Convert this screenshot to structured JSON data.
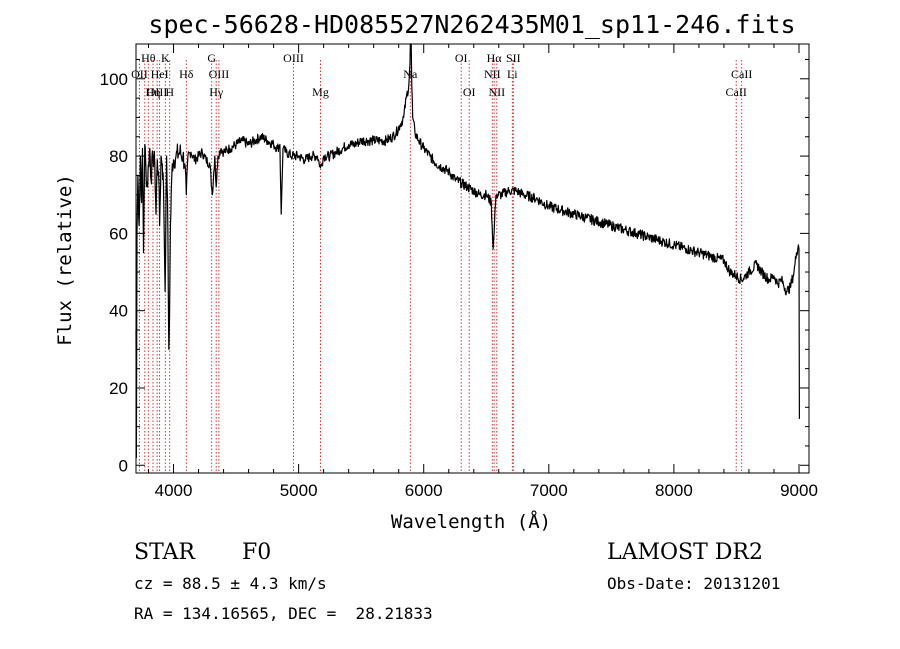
{
  "chart_data": {
    "type": "line",
    "title": "spec-56628-HD085527N262435M01_sp11-246.fits",
    "xlabel": "Wavelength (Å)",
    "ylabel": "Flux (relative)",
    "xlim": [
      3700,
      9080
    ],
    "ylim": [
      -2,
      109
    ],
    "xticks": [
      4000,
      5000,
      6000,
      7000,
      8000,
      9000
    ],
    "yticks": [
      0,
      20,
      40,
      60,
      80,
      100
    ],
    "grid": false,
    "series": [
      {
        "x": [
          3700,
          3703,
          3708,
          3715,
          3725,
          3735,
          3745,
          3752,
          3760,
          3770,
          3780,
          3790,
          3800,
          3810,
          3820,
          3835,
          3850,
          3860,
          3870,
          3880,
          3889,
          3900,
          3910,
          3920,
          3933,
          3945,
          3955,
          3962,
          3968,
          3975,
          3990,
          4000,
          4020,
          4050,
          4075,
          4090,
          4102,
          4115,
          4140,
          4170,
          4200,
          4230,
          4260,
          4290,
          4310,
          4330,
          4341,
          4355,
          4380,
          4400,
          4450,
          4500,
          4550,
          4600,
          4650,
          4700,
          4750,
          4800,
          4830,
          4850,
          4861,
          4875,
          4900,
          4950,
          5000,
          5050,
          5100,
          5150,
          5175,
          5200,
          5250,
          5300,
          5350,
          5400,
          5450,
          5500,
          5550,
          5600,
          5650,
          5700,
          5750,
          5780,
          5810,
          5840,
          5860,
          5880,
          5890,
          5893,
          5896,
          5900,
          5905,
          5912,
          5930,
          5960,
          6000,
          6050,
          6100,
          6150,
          6200,
          6250,
          6300,
          6350,
          6400,
          6450,
          6500,
          6540,
          6555,
          6563,
          6570,
          6580,
          6620,
          6680,
          6740,
          6800,
          6900,
          7000,
          7100,
          7200,
          7300,
          7400,
          7500,
          7600,
          7700,
          7800,
          7900,
          8000,
          8100,
          8200,
          8300,
          8400,
          8450,
          8498,
          8540,
          8600,
          8662,
          8700,
          8760,
          8800,
          8830,
          8860,
          8900,
          8930,
          8960,
          8980,
          8995,
          9000,
          9003
        ],
        "y": [
          35,
          2,
          60,
          75,
          62,
          80,
          68,
          82,
          55,
          83,
          76,
          72,
          78,
          82,
          74,
          80,
          78,
          65,
          79,
          76,
          62,
          80,
          78,
          72,
          45,
          80,
          60,
          30,
          38,
          62,
          78,
          79,
          80,
          81,
          80,
          78,
          70,
          80,
          81,
          79,
          80,
          81,
          79,
          78,
          70,
          80,
          72,
          80,
          82,
          81,
          82,
          83,
          84,
          83,
          84,
          85,
          84,
          83,
          82,
          83,
          65,
          82,
          81,
          80,
          80,
          79,
          80,
          80,
          77,
          80,
          80,
          81,
          82,
          83,
          83,
          84,
          84,
          84,
          84,
          84,
          85,
          86,
          88,
          90,
          95,
          98,
          104,
          116,
          110,
          120,
          98,
          90,
          86,
          84,
          82,
          80,
          78,
          77,
          76,
          74,
          73,
          72,
          71,
          70,
          70,
          68,
          56,
          60,
          66,
          70,
          70,
          71,
          71,
          70,
          69,
          67,
          66,
          65,
          64,
          63,
          62,
          61,
          60,
          59,
          58,
          57,
          56,
          55,
          54,
          53,
          50,
          49,
          48,
          50,
          52,
          50,
          48,
          49,
          47,
          48,
          45,
          46,
          50,
          55,
          57,
          56,
          12
        ]
      }
    ],
    "emission_lines": [
      {
        "label": "Hθ",
        "w": 3798,
        "row": 0
      },
      {
        "label": "OII",
        "w": 3727,
        "row": 1
      },
      {
        "label": "OIII",
        "w": 3869,
        "row": 2
      },
      {
        "label": "HeI",
        "w": 3889,
        "row": 1
      },
      {
        "label": "Hη",
        "w": 3836,
        "row": 2
      },
      {
        "label": "K",
        "w": 3934,
        "row": 0
      },
      {
        "label": "H",
        "w": 3969,
        "row": 2
      },
      {
        "label": "Hδ",
        "w": 4102,
        "row": 1
      },
      {
        "label": "G",
        "w": 4305,
        "row": 0
      },
      {
        "label": "OIII",
        "w": 4363,
        "row": 1
      },
      {
        "label": "Hγ",
        "w": 4341,
        "row": 2
      },
      {
        "label": "OIII",
        "w": 4959,
        "row": 0
      },
      {
        "label": "Mg",
        "w": 5175,
        "row": 2
      },
      {
        "label": "Na",
        "w": 5893,
        "row": 1
      },
      {
        "label": "OI",
        "w": 6300,
        "row": 0
      },
      {
        "label": "OI",
        "w": 6364,
        "row": 2
      },
      {
        "label": "Hα",
        "w": 6563,
        "row": 0
      },
      {
        "label": "NII",
        "w": 6548,
        "row": 1
      },
      {
        "label": "NII",
        "w": 6584,
        "row": 2
      },
      {
        "label": "SII",
        "w": 6716,
        "row": 0
      },
      {
        "label": "Li",
        "w": 6708,
        "row": 1
      },
      {
        "label": "CaII",
        "w": 8542,
        "row": 1
      },
      {
        "label": "CaII",
        "w": 8498,
        "row": 2
      }
    ],
    "line_marker_positions": [
      3727,
      3770,
      3798,
      3836,
      3869,
      3889,
      3934,
      3969,
      4102,
      4305,
      4341,
      4363,
      4959,
      5175,
      5893,
      6300,
      6364,
      6548,
      6563,
      6584,
      6708,
      6716,
      8498,
      8542
    ]
  },
  "info": {
    "class": "STAR",
    "subclass": "F0",
    "survey": "LAMOST DR2",
    "cz": "cz = 88.5 ± 4.3 km/s",
    "obs_date": "Obs-Date: 20131201",
    "coords": "RA = 134.16565, DEC =  28.21833"
  }
}
